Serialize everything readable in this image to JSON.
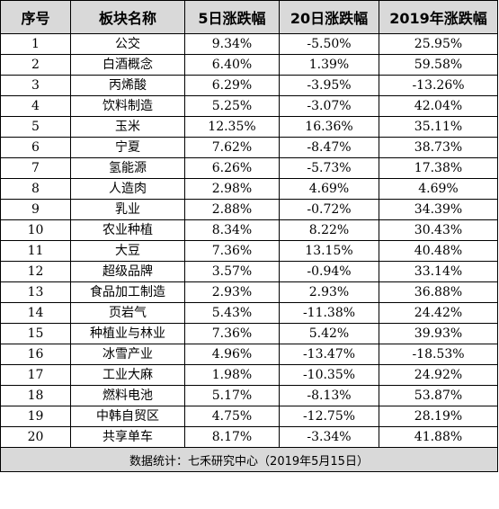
{
  "table": {
    "headers": [
      "序号",
      "板块名称",
      "5日涨跌幅",
      "20日涨跌幅",
      "2019年涨跌幅"
    ],
    "rows": [
      [
        "1",
        "公交",
        "9.34%",
        "-5.50%",
        "25.95%"
      ],
      [
        "2",
        "白酒概念",
        "6.40%",
        "1.39%",
        "59.58%"
      ],
      [
        "3",
        "丙烯酸",
        "6.29%",
        "-3.95%",
        "-13.26%"
      ],
      [
        "4",
        "饮料制造",
        "5.25%",
        "-3.07%",
        "42.04%"
      ],
      [
        "5",
        "玉米",
        "12.35%",
        "16.36%",
        "35.11%"
      ],
      [
        "6",
        "宁夏",
        "7.62%",
        "-8.47%",
        "38.73%"
      ],
      [
        "7",
        "氢能源",
        "6.26%",
        "-5.73%",
        "17.38%"
      ],
      [
        "8",
        "人造肉",
        "2.98%",
        "4.69%",
        "4.69%"
      ],
      [
        "9",
        "乳业",
        "2.88%",
        "-0.72%",
        "34.39%"
      ],
      [
        "10",
        "农业种植",
        "8.34%",
        "8.22%",
        "30.43%"
      ],
      [
        "11",
        "大豆",
        "7.36%",
        "13.15%",
        "40.48%"
      ],
      [
        "12",
        "超级品牌",
        "3.57%",
        "-0.94%",
        "33.14%"
      ],
      [
        "13",
        "食品加工制造",
        "2.93%",
        "2.93%",
        "36.88%"
      ],
      [
        "14",
        "页岩气",
        "5.43%",
        "-11.38%",
        "24.42%"
      ],
      [
        "15",
        "种植业与林业",
        "7.36%",
        "5.42%",
        "39.93%"
      ],
      [
        "16",
        "冰雪产业",
        "4.96%",
        "-13.47%",
        "-18.53%"
      ],
      [
        "17",
        "工业大麻",
        "1.98%",
        "-10.35%",
        "24.92%"
      ],
      [
        "18",
        "燃料电池",
        "5.17%",
        "-8.13%",
        "53.87%"
      ],
      [
        "19",
        "中韩自贸区",
        "4.75%",
        "-12.75%",
        "28.19%"
      ],
      [
        "20",
        "共享单车",
        "8.17%",
        "-3.34%",
        "41.88%"
      ]
    ],
    "footer": "数据统计：七禾研究中心（2019年5月15日）"
  },
  "colors": {
    "header_bg": "#d9d9d9",
    "footer_bg": "#d9d9d9",
    "border": "#000000"
  }
}
